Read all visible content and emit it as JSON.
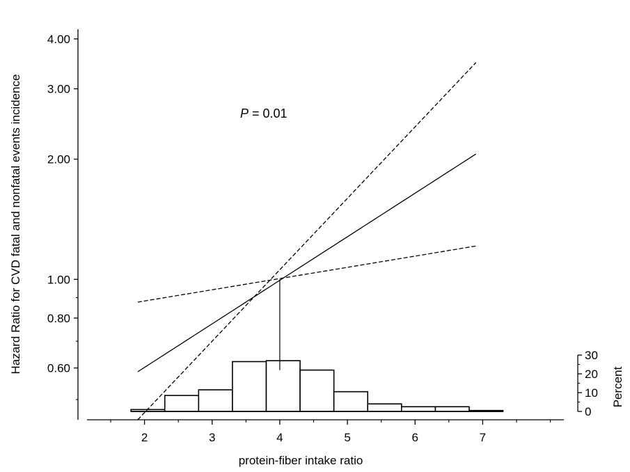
{
  "chart_data": {
    "type": "line",
    "title": "",
    "annotation": {
      "symbol": "P",
      "text": " = 0.01"
    },
    "xlabel": "protein-fiber intake ratio",
    "ylabel": "Hazard Ratio for CVD fatal and nonfatal events incidence",
    "y2label": "Percent",
    "x_scale": "linear",
    "y_scale": "log",
    "xlim": [
      1.15,
      8.2
    ],
    "ylim": [
      0.445,
      4.35
    ],
    "y2lim": [
      0,
      30
    ],
    "x_ticks": [
      "2",
      "3",
      "4",
      "5",
      "6",
      "7"
    ],
    "y_ticks": [
      "0.60",
      "0.80",
      "1.00",
      "2.00",
      "3.00",
      "4.00"
    ],
    "y2_ticks": [
      "0",
      "10",
      "20",
      "30"
    ],
    "reference_x": 4,
    "series": [
      {
        "style": "solid",
        "x": [
          1.9,
          6.9
        ],
        "y": [
          0.587,
          2.06
        ]
      },
      {
        "style": "dashed",
        "x": [
          1.9,
          6.9
        ],
        "y": [
          0.445,
          3.49
        ]
      },
      {
        "style": "dashed",
        "x": [
          1.9,
          6.9
        ],
        "y": [
          0.877,
          1.212
        ]
      }
    ],
    "histogram": {
      "bin_edges": [
        1.8,
        2.3,
        2.8,
        3.3,
        3.8,
        4.3,
        4.8,
        5.3,
        5.8,
        6.3,
        6.8,
        7.3
      ],
      "values": [
        1,
        8.5,
        11.5,
        26.5,
        27,
        22,
        10.5,
        4,
        2.5,
        2.5,
        0.5
      ]
    },
    "grid": false,
    "legend": "none"
  }
}
